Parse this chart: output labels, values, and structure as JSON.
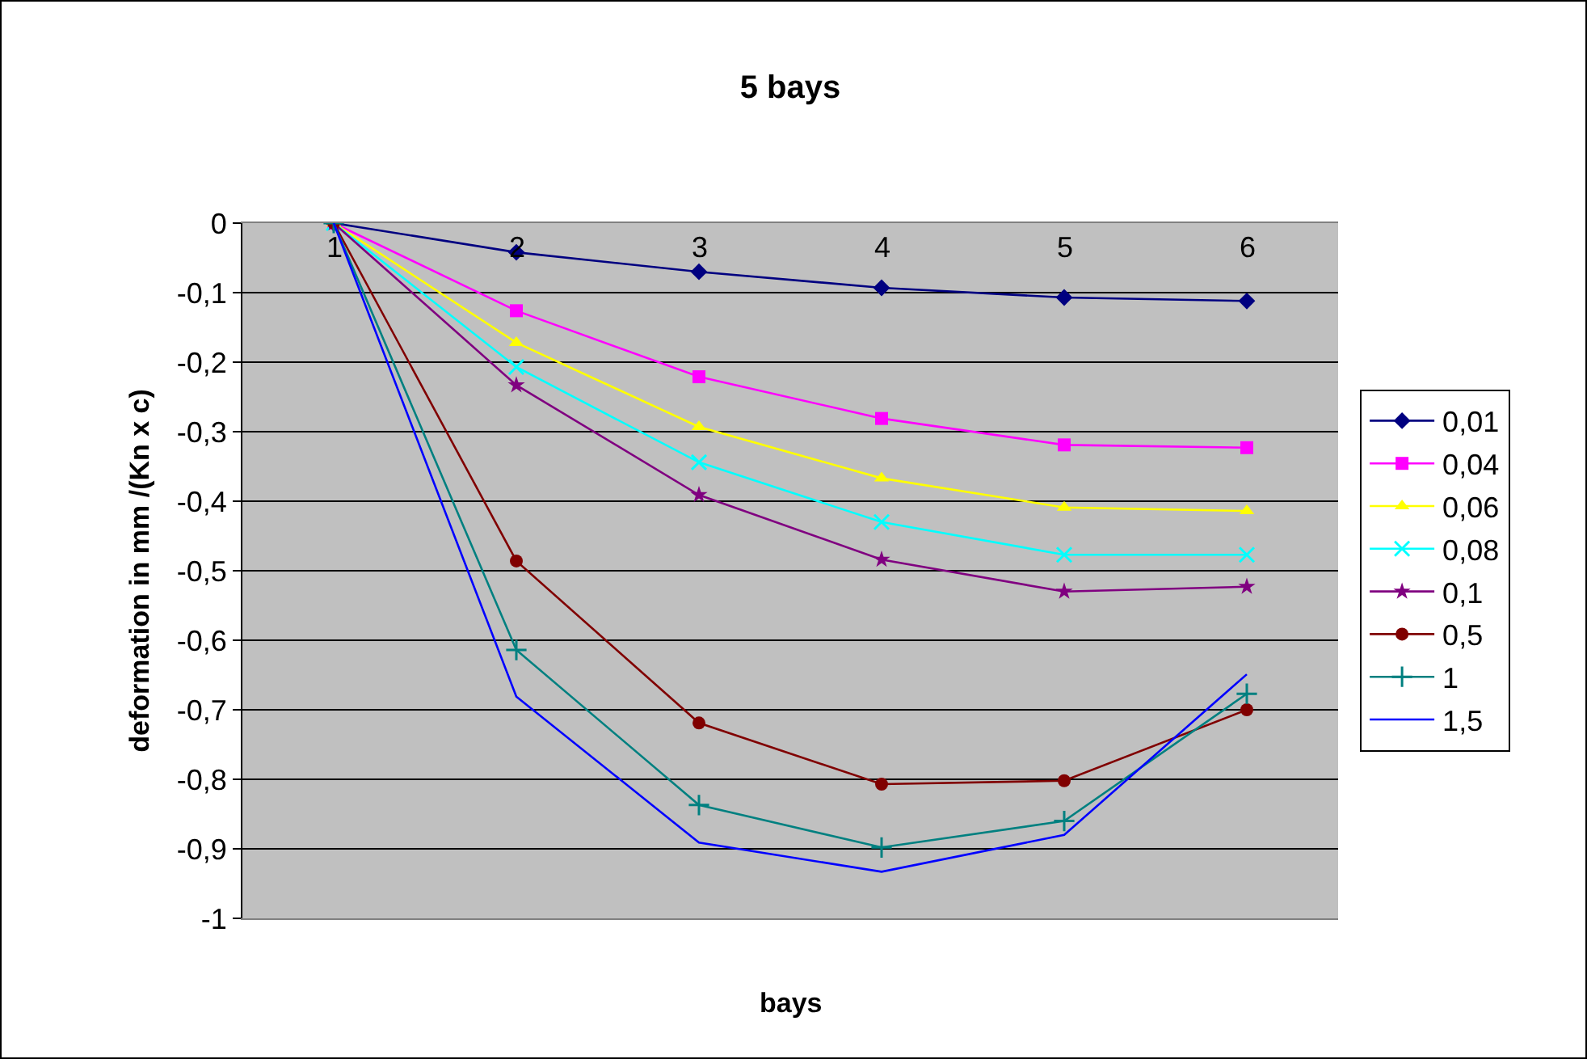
{
  "chart_data": {
    "type": "line",
    "title": "5 bays",
    "xlabel": "bays",
    "ylabel": "deformation in mm /(Kn x c)",
    "categories": [
      "1",
      "2",
      "3",
      "4",
      "5",
      "6"
    ],
    "ylim": [
      -1,
      0
    ],
    "yticks": [
      {
        "value": -1,
        "label": "-1"
      },
      {
        "value": -0.9,
        "label": "-0,9"
      },
      {
        "value": -0.8,
        "label": "-0,8"
      },
      {
        "value": -0.7,
        "label": "-0,7"
      },
      {
        "value": -0.6,
        "label": "-0,6"
      },
      {
        "value": -0.5,
        "label": "-0,5"
      },
      {
        "value": -0.4,
        "label": "-0,4"
      },
      {
        "value": -0.3,
        "label": "-0,3"
      },
      {
        "value": -0.2,
        "label": "-0,2"
      },
      {
        "value": -0.1,
        "label": "-0,1"
      },
      {
        "value": 0,
        "label": "0"
      }
    ],
    "grid": "y",
    "legend": "right",
    "line_style": "solid",
    "series": [
      {
        "name": "0,01",
        "color": "#000080",
        "marker": "diamond",
        "values": [
          0,
          -0.042,
          -0.07,
          -0.093,
          -0.107,
          -0.112
        ]
      },
      {
        "name": "0,04",
        "color": "#ff00ff",
        "marker": "square",
        "values": [
          0,
          -0.126,
          -0.221,
          -0.281,
          -0.319,
          -0.323
        ]
      },
      {
        "name": "0,06",
        "color": "#ffff00",
        "marker": "triangle",
        "values": [
          0,
          -0.172,
          -0.293,
          -0.367,
          -0.409,
          -0.414
        ]
      },
      {
        "name": "0,08",
        "color": "#00ffff",
        "marker": "cross",
        "values": [
          0,
          -0.207,
          -0.344,
          -0.43,
          -0.477,
          -0.477
        ]
      },
      {
        "name": "0,1",
        "color": "#800080",
        "marker": "star",
        "values": [
          0,
          -0.233,
          -0.391,
          -0.484,
          -0.53,
          -0.523
        ]
      },
      {
        "name": "0,5",
        "color": "#800000",
        "marker": "circle",
        "values": [
          0,
          -0.486,
          -0.719,
          -0.807,
          -0.802,
          -0.7
        ]
      },
      {
        "name": "1",
        "color": "#008080",
        "marker": "plus",
        "values": [
          0,
          -0.614,
          -0.837,
          -0.898,
          -0.86,
          -0.677
        ]
      },
      {
        "name": "1,5",
        "color": "#0000ff",
        "marker": "none",
        "values": [
          0,
          -0.681,
          -0.891,
          -0.933,
          -0.88,
          -0.649
        ]
      }
    ]
  }
}
